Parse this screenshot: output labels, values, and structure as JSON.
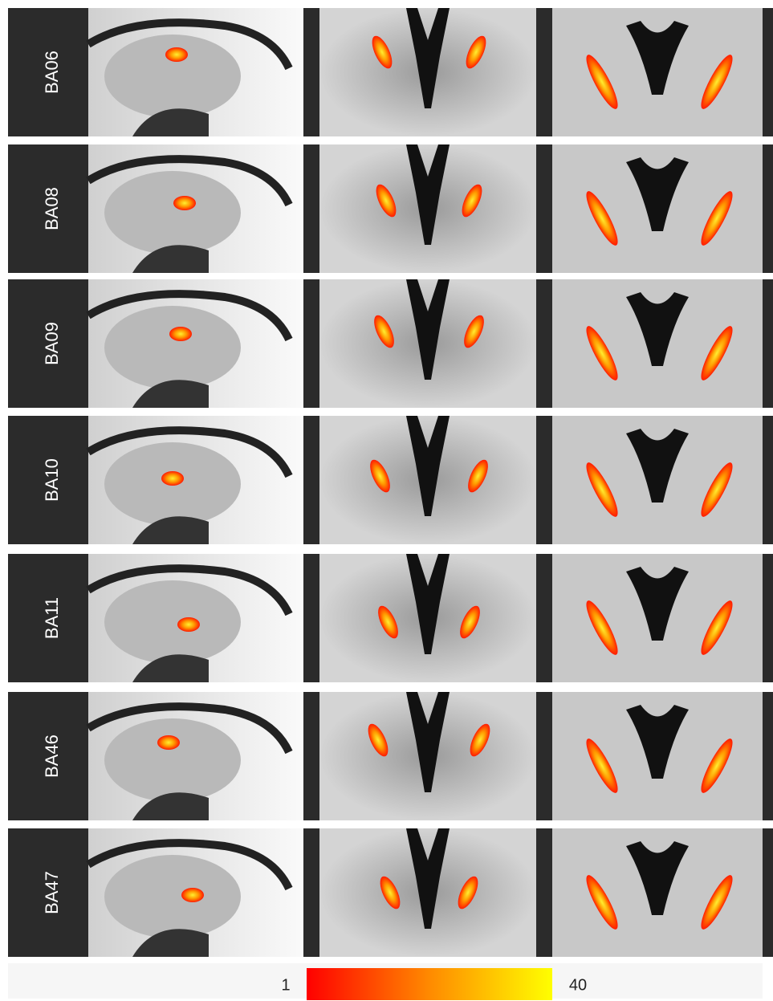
{
  "rows": [
    {
      "label": "BA06"
    },
    {
      "label": "BA08"
    },
    {
      "label": "BA09"
    },
    {
      "label": "BA10"
    },
    {
      "label": "BA11"
    },
    {
      "label": "BA46"
    },
    {
      "label": "BA47"
    }
  ],
  "colorbar": {
    "min": 1,
    "max": 40
  }
}
